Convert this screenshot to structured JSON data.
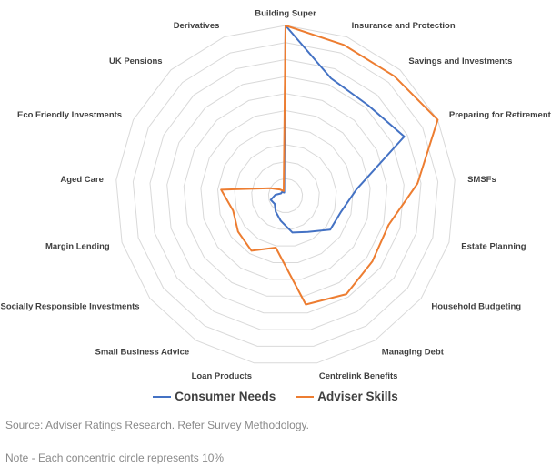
{
  "chart_data": {
    "type": "radar",
    "categories": [
      "Building Super",
      "Insurance and Protection",
      "Savings and Investments",
      "Preparing for Retirement",
      "SMSFs",
      "Estate Planning",
      "Household Budgeting",
      "Managing Debt",
      "Centrelink Benefits",
      "Loan Products",
      "Small Business Advice",
      "Socially Responsible Investments",
      "Margin Lending",
      "Aged Care",
      "Eco Friendly Investments",
      "UK Pensions",
      "Derivatives"
    ],
    "series": [
      {
        "name": "Consumer Needs",
        "color": "#4472C4",
        "values": [
          100,
          74,
          72,
          78,
          42,
          34,
          33,
          25,
          22,
          15,
          11,
          8,
          9,
          6,
          3,
          3,
          2
        ]
      },
      {
        "name": "Adviser Skills",
        "color": "#ED7D31",
        "values": [
          100,
          95,
          95,
          100,
          78,
          63,
          64,
          68,
          65,
          31,
          38,
          35,
          32,
          38,
          10,
          5,
          3
        ]
      }
    ],
    "rlim": [
      0,
      100
    ],
    "ring_step": 10,
    "legend_position": "bottom"
  },
  "footer": {
    "source": "Source: Adviser Ratings Research. Refer Survey Methodology.",
    "note": "Note - Each concentric circle represents 10%"
  }
}
